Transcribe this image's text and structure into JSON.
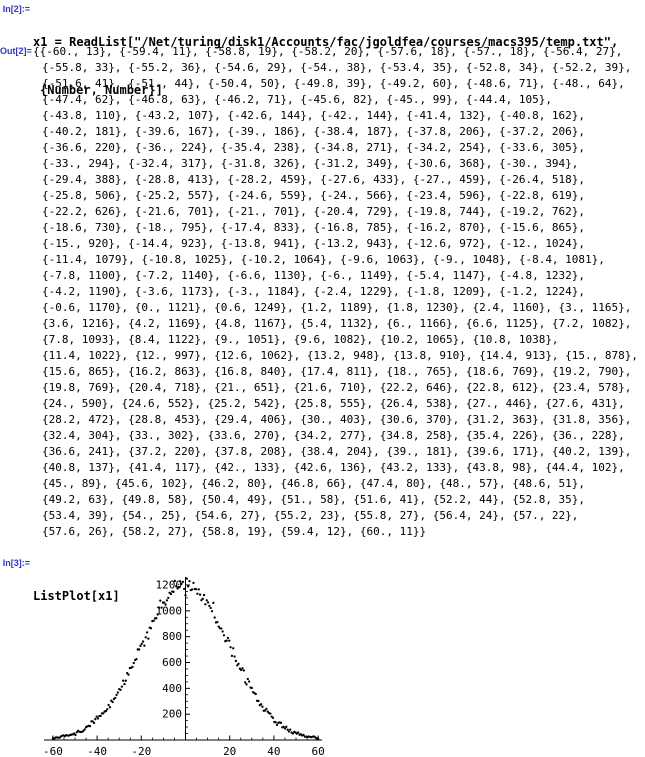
{
  "app": {
    "name": "Mathematica notebook"
  },
  "cells": {
    "in2": {
      "label": "In[2]:=",
      "lines": [
        "x1 = ReadList[\"/Net/turing/disk1/Accounts/fac/jgoldfea/courses/macs395/temp.txt\",",
        "{Number, Number}]"
      ]
    },
    "out2": {
      "label": "Out[2]=",
      "lines": [
        "{{-60., 13}, {-59.4, 11}, {-58.8, 19}, {-58.2, 20}, {-57.6, 18}, {-57., 18}, {-56.4, 27},",
        "{-55.8, 33}, {-55.2, 36}, {-54.6, 29}, {-54., 38}, {-53.4, 35}, {-52.8, 34}, {-52.2, 39},",
        "{-51.6, 41}, {-51., 44}, {-50.4, 50}, {-49.8, 39}, {-49.2, 60}, {-48.6, 71}, {-48., 64},",
        "{-47.4, 62}, {-46.8, 63}, {-46.2, 71}, {-45.6, 82}, {-45., 99}, {-44.4, 105},",
        "{-43.8, 110}, {-43.2, 107}, {-42.6, 144}, {-42., 144}, {-41.4, 132}, {-40.8, 162},",
        "{-40.2, 181}, {-39.6, 167}, {-39., 186}, {-38.4, 187}, {-37.8, 206}, {-37.2, 206},",
        "{-36.6, 220}, {-36., 224}, {-35.4, 238}, {-34.8, 271}, {-34.2, 254}, {-33.6, 305},",
        "{-33., 294}, {-32.4, 317}, {-31.8, 326}, {-31.2, 349}, {-30.6, 368}, {-30., 394},",
        "{-29.4, 388}, {-28.8, 413}, {-28.2, 459}, {-27.6, 433}, {-27., 459}, {-26.4, 518},",
        "{-25.8, 506}, {-25.2, 557}, {-24.6, 559}, {-24., 566}, {-23.4, 596}, {-22.8, 619},",
        "{-22.2, 626}, {-21.6, 701}, {-21., 701}, {-20.4, 729}, {-19.8, 744}, {-19.2, 762},",
        "{-18.6, 730}, {-18., 795}, {-17.4, 833}, {-16.8, 785}, {-16.2, 870}, {-15.6, 865},",
        "{-15., 920}, {-14.4, 923}, {-13.8, 941}, {-13.2, 943}, {-12.6, 972}, {-12., 1024},",
        "{-11.4, 1079}, {-10.8, 1025}, {-10.2, 1064}, {-9.6, 1063}, {-9., 1048}, {-8.4, 1081},",
        "{-7.8, 1100}, {-7.2, 1140}, {-6.6, 1130}, {-6., 1149}, {-5.4, 1147}, {-4.8, 1232},",
        "{-4.2, 1190}, {-3.6, 1173}, {-3., 1184}, {-2.4, 1229}, {-1.8, 1209}, {-1.2, 1224},",
        "{-0.6, 1170}, {0., 1121}, {0.6, 1249}, {1.2, 1189}, {1.8, 1230}, {2.4, 1160}, {3., 1165},",
        "{3.6, 1216}, {4.2, 1169}, {4.8, 1167}, {5.4, 1132}, {6., 1166}, {6.6, 1125}, {7.2, 1082},",
        "{7.8, 1093}, {8.4, 1122}, {9., 1051}, {9.6, 1082}, {10.2, 1065}, {10.8, 1038},",
        "{11.4, 1022}, {12., 997}, {12.6, 1062}, {13.2, 948}, {13.8, 910}, {14.4, 913}, {15., 878},",
        "{15.6, 865}, {16.2, 863}, {16.8, 840}, {17.4, 811}, {18., 765}, {18.6, 769}, {19.2, 790},",
        "{19.8, 769}, {20.4, 718}, {21., 651}, {21.6, 710}, {22.2, 646}, {22.8, 612}, {23.4, 578},",
        "{24., 590}, {24.6, 552}, {25.2, 542}, {25.8, 555}, {26.4, 538}, {27., 446}, {27.6, 431},",
        "{28.2, 472}, {28.8, 453}, {29.4, 406}, {30., 403}, {30.6, 370}, {31.2, 363}, {31.8, 356},",
        "{32.4, 304}, {33., 302}, {33.6, 270}, {34.2, 277}, {34.8, 258}, {35.4, 226}, {36., 228},",
        "{36.6, 241}, {37.2, 220}, {37.8, 208}, {38.4, 204}, {39., 181}, {39.6, 171}, {40.2, 139},",
        "{40.8, 137}, {41.4, 117}, {42., 133}, {42.6, 136}, {43.2, 133}, {43.8, 98}, {44.4, 102},",
        "{45., 89}, {45.6, 102}, {46.2, 80}, {46.8, 66}, {47.4, 80}, {48., 57}, {48.6, 51},",
        "{49.2, 63}, {49.8, 58}, {50.4, 49}, {51., 58}, {51.6, 41}, {52.2, 44}, {52.8, 35},",
        "{53.4, 39}, {54., 25}, {54.6, 27}, {55.2, 23}, {55.8, 27}, {56.4, 24}, {57., 22},",
        "{57.6, 26}, {58.2, 27}, {58.8, 19}, {59.4, 12}, {60., 11}}"
      ]
    },
    "in3": {
      "label": "In[3]:=",
      "code": "ListPlot[x1]"
    }
  },
  "chart_data": {
    "type": "scatter",
    "title": "",
    "xlabel": "",
    "ylabel": "",
    "xlim": [
      -63,
      63
    ],
    "ylim": [
      0,
      1280
    ],
    "x_ticks": [
      -60,
      -40,
      -20,
      20,
      40,
      60
    ],
    "y_ticks": [
      200,
      400,
      600,
      800,
      1000,
      1200
    ],
    "x_minor_step": 5,
    "y_minor_step": 50,
    "marker": "point",
    "marker_color": "#000000",
    "x_start": -60,
    "x_step": 0.6,
    "y_values": [
      13,
      11,
      19,
      20,
      18,
      18,
      27,
      33,
      36,
      29,
      38,
      35,
      34,
      39,
      41,
      44,
      50,
      39,
      60,
      71,
      64,
      62,
      63,
      71,
      82,
      99,
      105,
      110,
      107,
      144,
      144,
      132,
      162,
      181,
      167,
      186,
      187,
      206,
      206,
      220,
      224,
      238,
      271,
      254,
      305,
      294,
      317,
      326,
      349,
      368,
      394,
      388,
      413,
      459,
      433,
      459,
      518,
      506,
      557,
      559,
      566,
      596,
      619,
      626,
      701,
      701,
      729,
      744,
      762,
      730,
      795,
      833,
      785,
      870,
      865,
      920,
      923,
      941,
      943,
      972,
      1024,
      1079,
      1025,
      1064,
      1063,
      1048,
      1081,
      1100,
      1140,
      1130,
      1149,
      1147,
      1232,
      1190,
      1173,
      1184,
      1229,
      1209,
      1224,
      1170,
      1121,
      1249,
      1189,
      1230,
      1160,
      1165,
      1216,
      1169,
      1167,
      1132,
      1166,
      1125,
      1082,
      1093,
      1122,
      1051,
      1082,
      1065,
      1038,
      1022,
      997,
      1062,
      948,
      910,
      913,
      878,
      865,
      863,
      840,
      811,
      765,
      769,
      790,
      769,
      718,
      651,
      710,
      646,
      612,
      578,
      590,
      552,
      542,
      555,
      538,
      446,
      431,
      472,
      453,
      406,
      403,
      370,
      363,
      356,
      304,
      302,
      270,
      277,
      258,
      226,
      228,
      241,
      220,
      208,
      204,
      181,
      171,
      139,
      137,
      117,
      133,
      136,
      133,
      98,
      102,
      89,
      102,
      80,
      66,
      80,
      57,
      51,
      63,
      58,
      49,
      58,
      41,
      44,
      35,
      39,
      25,
      27,
      23,
      27,
      24,
      22,
      26,
      27,
      19,
      12,
      11
    ]
  },
  "colors": {
    "cell_label": "#3333cc",
    "code_text": "#000000",
    "background": "#ffffff"
  }
}
